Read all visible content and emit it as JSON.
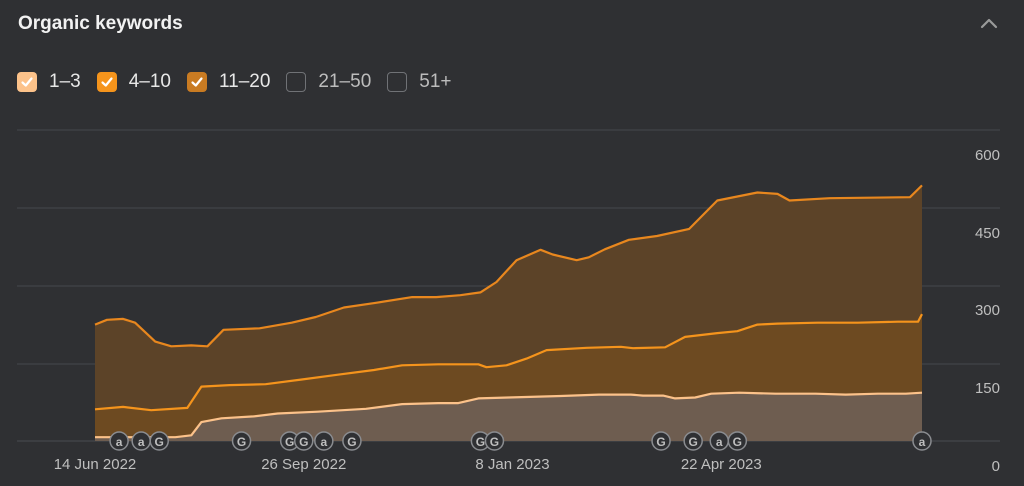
{
  "widget": {
    "title": "Organic keywords"
  },
  "legend": [
    {
      "label": "1–3",
      "checked": true,
      "color": "#fcc28a"
    },
    {
      "label": "4–10",
      "checked": true,
      "color": "#f5941c"
    },
    {
      "label": "11–20",
      "checked": true,
      "color": "#c97b22"
    },
    {
      "label": "21–50",
      "checked": false,
      "color": "#707276"
    },
    {
      "label": "51+",
      "checked": false,
      "color": "#707276"
    }
  ],
  "chart_data": {
    "type": "area",
    "stacked": true,
    "x_start": "2022-06-14",
    "x_end": "2023-07-31",
    "x_ticks": [
      {
        "date": "2022-06-14",
        "label": "14 Jun 2022"
      },
      {
        "date": "2022-09-26",
        "label": "26 Sep 2022"
      },
      {
        "date": "2023-01-08",
        "label": "8 Jan 2023"
      },
      {
        "date": "2023-04-22",
        "label": "22 Apr 2023"
      }
    ],
    "y_ticks": [
      0,
      150,
      300,
      450,
      600
    ],
    "ylim": [
      0,
      600
    ],
    "y_axis_position": "right",
    "grid": true,
    "series": [
      {
        "name": "1–3",
        "line_color": "#fcc28a",
        "fill_color": "#6e5d50",
        "points": [
          [
            "2022-06-14",
            8
          ],
          [
            "2022-07-04",
            8
          ],
          [
            "2022-07-24",
            8
          ],
          [
            "2022-08-01",
            12
          ],
          [
            "2022-08-06",
            40
          ],
          [
            "2022-08-16",
            48
          ],
          [
            "2022-09-01",
            52
          ],
          [
            "2022-09-13",
            58
          ],
          [
            "2022-10-03",
            62
          ],
          [
            "2022-10-27",
            68
          ],
          [
            "2022-11-14",
            78
          ],
          [
            "2022-12-02",
            80
          ],
          [
            "2022-12-12",
            80
          ],
          [
            "2022-12-22",
            90
          ],
          [
            "2023-01-06",
            92
          ],
          [
            "2023-02-01",
            95
          ],
          [
            "2023-02-20",
            98
          ],
          [
            "2023-03-08",
            98
          ],
          [
            "2023-03-14",
            96
          ],
          [
            "2023-03-24",
            96
          ],
          [
            "2023-03-30",
            90
          ],
          [
            "2023-04-09",
            92
          ],
          [
            "2023-04-17",
            100
          ],
          [
            "2023-05-01",
            102
          ],
          [
            "2023-05-19",
            100
          ],
          [
            "2023-06-08",
            100
          ],
          [
            "2023-06-23",
            98
          ],
          [
            "2023-07-09",
            100
          ],
          [
            "2023-07-23",
            100
          ],
          [
            "2023-07-31",
            102
          ]
        ]
      },
      {
        "name": "4–10",
        "line_color": "#f5941c",
        "fill_color": "#6d4a21",
        "points": [
          [
            "2022-06-14",
            67
          ],
          [
            "2022-06-28",
            72
          ],
          [
            "2022-07-12",
            65
          ],
          [
            "2022-07-30",
            70
          ],
          [
            "2022-08-06",
            115
          ],
          [
            "2022-08-20",
            118
          ],
          [
            "2022-09-07",
            120
          ],
          [
            "2022-09-25",
            130
          ],
          [
            "2022-10-13",
            140
          ],
          [
            "2022-10-31",
            150
          ],
          [
            "2022-11-14",
            160
          ],
          [
            "2022-12-02",
            162
          ],
          [
            "2022-12-22",
            162
          ],
          [
            "2022-12-26",
            156
          ],
          [
            "2023-01-05",
            160
          ],
          [
            "2023-01-15",
            174
          ],
          [
            "2023-01-25",
            192
          ],
          [
            "2023-02-14",
            197
          ],
          [
            "2023-03-03",
            199
          ],
          [
            "2023-03-09",
            196
          ],
          [
            "2023-03-25",
            198
          ],
          [
            "2023-04-04",
            220
          ],
          [
            "2023-04-20",
            228
          ],
          [
            "2023-04-30",
            232
          ],
          [
            "2023-05-10",
            246
          ],
          [
            "2023-05-20",
            248
          ],
          [
            "2023-06-09",
            250
          ],
          [
            "2023-06-29",
            250
          ],
          [
            "2023-07-19",
            252
          ],
          [
            "2023-07-29",
            252
          ],
          [
            "2023-07-31",
            268
          ]
        ]
      },
      {
        "name": "11–20",
        "line_color": "#e8871e",
        "fill_color": "#5c4328",
        "points": [
          [
            "2022-06-14",
            246
          ],
          [
            "2022-06-20",
            256
          ],
          [
            "2022-06-28",
            258
          ],
          [
            "2022-07-04",
            250
          ],
          [
            "2022-07-14",
            210
          ],
          [
            "2022-07-22",
            200
          ],
          [
            "2022-08-01",
            202
          ],
          [
            "2022-08-09",
            200
          ],
          [
            "2022-08-17",
            235
          ],
          [
            "2022-09-04",
            238
          ],
          [
            "2022-09-20",
            250
          ],
          [
            "2022-10-02",
            262
          ],
          [
            "2022-10-16",
            282
          ],
          [
            "2022-11-01",
            292
          ],
          [
            "2022-11-19",
            304
          ],
          [
            "2022-12-01",
            304
          ],
          [
            "2022-12-13",
            308
          ],
          [
            "2022-12-23",
            314
          ],
          [
            "2022-12-31",
            336
          ],
          [
            "2023-01-10",
            382
          ],
          [
            "2023-01-22",
            404
          ],
          [
            "2023-01-28",
            394
          ],
          [
            "2023-02-09",
            382
          ],
          [
            "2023-02-15",
            388
          ],
          [
            "2023-02-23",
            405
          ],
          [
            "2023-03-07",
            425
          ],
          [
            "2023-03-21",
            433
          ],
          [
            "2023-04-06",
            448
          ],
          [
            "2023-04-20",
            508
          ],
          [
            "2023-05-10",
            525
          ],
          [
            "2023-05-20",
            522
          ],
          [
            "2023-05-26",
            508
          ],
          [
            "2023-06-15",
            513
          ],
          [
            "2023-07-05",
            514
          ],
          [
            "2023-07-25",
            515
          ],
          [
            "2023-07-31",
            540
          ]
        ]
      }
    ],
    "annotations": [
      {
        "date": "2022-06-26",
        "icon": "a"
      },
      {
        "date": "2022-07-07",
        "icon": "a"
      },
      {
        "date": "2022-07-16",
        "icon": "G"
      },
      {
        "date": "2022-08-26",
        "icon": "G"
      },
      {
        "date": "2022-09-19",
        "icon": "G"
      },
      {
        "date": "2022-09-26",
        "icon": "G"
      },
      {
        "date": "2022-10-06",
        "icon": "a"
      },
      {
        "date": "2022-10-20",
        "icon": "G"
      },
      {
        "date": "2022-12-23",
        "icon": "G"
      },
      {
        "date": "2022-12-30",
        "icon": "G"
      },
      {
        "date": "2023-03-23",
        "icon": "G"
      },
      {
        "date": "2023-04-08",
        "icon": "G"
      },
      {
        "date": "2023-04-21",
        "icon": "a"
      },
      {
        "date": "2023-04-30",
        "icon": "G"
      },
      {
        "date": "2023-07-31",
        "icon": "a"
      }
    ]
  }
}
